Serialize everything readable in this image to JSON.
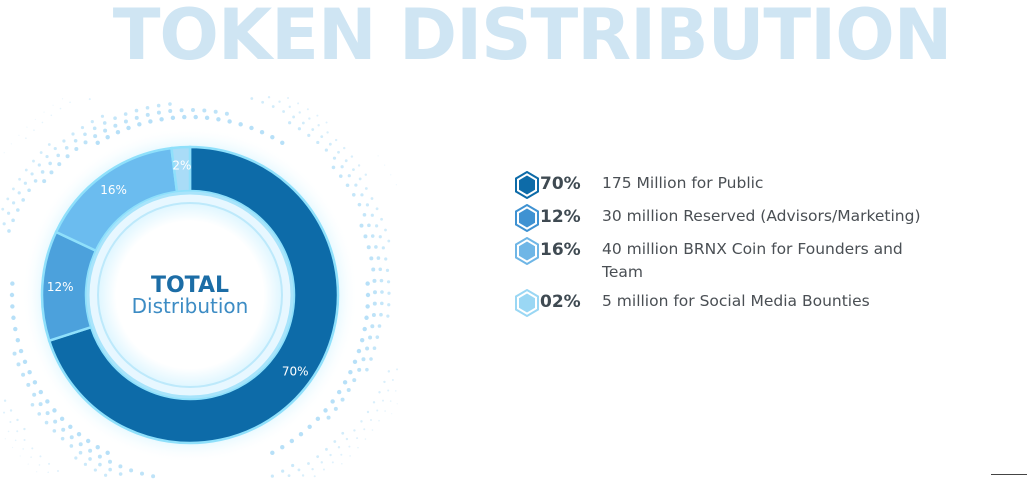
{
  "title": "TOKEN DISTRIBUTION",
  "center": {
    "line1": "TOTAL",
    "line2": "Distribution"
  },
  "colors": {
    "public": "#0d6ba8",
    "reserved": "#4ca1dc",
    "founders": "#6bbcef",
    "bounties": "#a9dcf7",
    "title": "#cfe5f3"
  },
  "chart_data": {
    "type": "pie",
    "title": "TOKEN DISTRIBUTION",
    "slices": [
      {
        "label": "70%",
        "value": 70,
        "color": "#0d6ba8"
      },
      {
        "label": "12%",
        "value": 12,
        "color": "#4ca1dc"
      },
      {
        "label": "16%",
        "value": 16,
        "color": "#6bbcef"
      },
      {
        "label": "2%",
        "value": 2,
        "color": "#a9dcf7"
      }
    ]
  },
  "legend": [
    {
      "pct": "70%",
      "desc": "175 Million for Public",
      "color": "#0d6ba8",
      "icon": "hexagon-icon"
    },
    {
      "pct": "12%",
      "desc": "30 million Reserved (Advisors/Marketing)",
      "color": "#3f92d2",
      "icon": "hexagon-icon"
    },
    {
      "pct": "16%",
      "desc": "40 million BRNX Coin for Founders and Team",
      "color": "#6fb6e6",
      "icon": "hexagon-icon"
    },
    {
      "pct": "02%",
      "desc": "5 million for Social Media Bounties",
      "color": "#9ad7f4",
      "icon": "hexagon-icon"
    }
  ]
}
